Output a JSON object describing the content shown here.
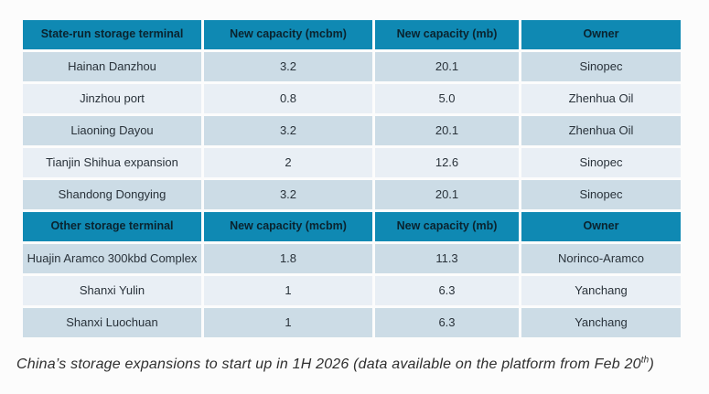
{
  "colors": {
    "page_bg": "#fcfcfc",
    "header_bg": "#0f89b3",
    "header_text": "#0a232e",
    "row_dark": "#ccdce6",
    "row_light": "#e9eff5",
    "cell_text": "#29323a",
    "caption_text": "#2f2f2f"
  },
  "tables": [
    {
      "name": "state-run-storage",
      "headers": [
        "State-run storage terminal",
        "New capacity (mcbm)",
        "New capacity (mb)",
        "Owner"
      ],
      "rows": [
        [
          "Hainan Danzhou",
          "3.2",
          "20.1",
          "Sinopec"
        ],
        [
          "Jinzhou port",
          "0.8",
          "5.0",
          "Zhenhua Oil"
        ],
        [
          "Liaoning Dayou",
          "3.2",
          "20.1",
          "Zhenhua Oil"
        ],
        [
          "Tianjin Shihua expansion",
          "2",
          "12.6",
          "Sinopec"
        ],
        [
          "Shandong Dongying",
          "3.2",
          "20.1",
          "Sinopec"
        ]
      ]
    },
    {
      "name": "other-storage",
      "headers": [
        "Other storage terminal",
        "New capacity (mcbm)",
        "New capacity (mb)",
        "Owner"
      ],
      "rows": [
        [
          "Huajin Aramco 300kbd Complex",
          "1.8",
          "11.3",
          "Norinco-Aramco"
        ],
        [
          "Shanxi Yulin",
          "1",
          "6.3",
          "Yanchang"
        ],
        [
          "Shanxi Luochuan",
          "1",
          "6.3",
          "Yanchang"
        ]
      ]
    }
  ],
  "caption": {
    "main": "China’s storage expansions to start up in 1H 2026 (data available on the platform from Feb 20",
    "superscript": "th",
    "closing": ")"
  },
  "chart_data": [
    {
      "type": "table",
      "title": "China's storage expansions to start up in 1H 2026 (data available on the platform from Feb 20th)",
      "columns": [
        "State-run storage terminal",
        "New capacity (mcbm)",
        "New capacity (mb)",
        "Owner"
      ],
      "rows": [
        [
          "Hainan Danzhou",
          3.2,
          20.1,
          "Sinopec"
        ],
        [
          "Jinzhou port",
          0.8,
          5.0,
          "Zhenhua Oil"
        ],
        [
          "Liaoning Dayou",
          3.2,
          20.1,
          "Zhenhua Oil"
        ],
        [
          "Tianjin Shihua expansion",
          2,
          12.6,
          "Sinopec"
        ],
        [
          "Shandong Dongying",
          3.2,
          20.1,
          "Sinopec"
        ]
      ]
    },
    {
      "type": "table",
      "title": "Other storage terminals",
      "columns": [
        "Other storage terminal",
        "New capacity (mcbm)",
        "New capacity (mb)",
        "Owner"
      ],
      "rows": [
        [
          "Huajin Aramco 300kbd Complex",
          1.8,
          11.3,
          "Norinco-Aramco"
        ],
        [
          "Shanxi Yulin",
          1,
          6.3,
          "Yanchang"
        ],
        [
          "Shanxi Luochuan",
          1,
          6.3,
          "Yanchang"
        ]
      ]
    }
  ]
}
